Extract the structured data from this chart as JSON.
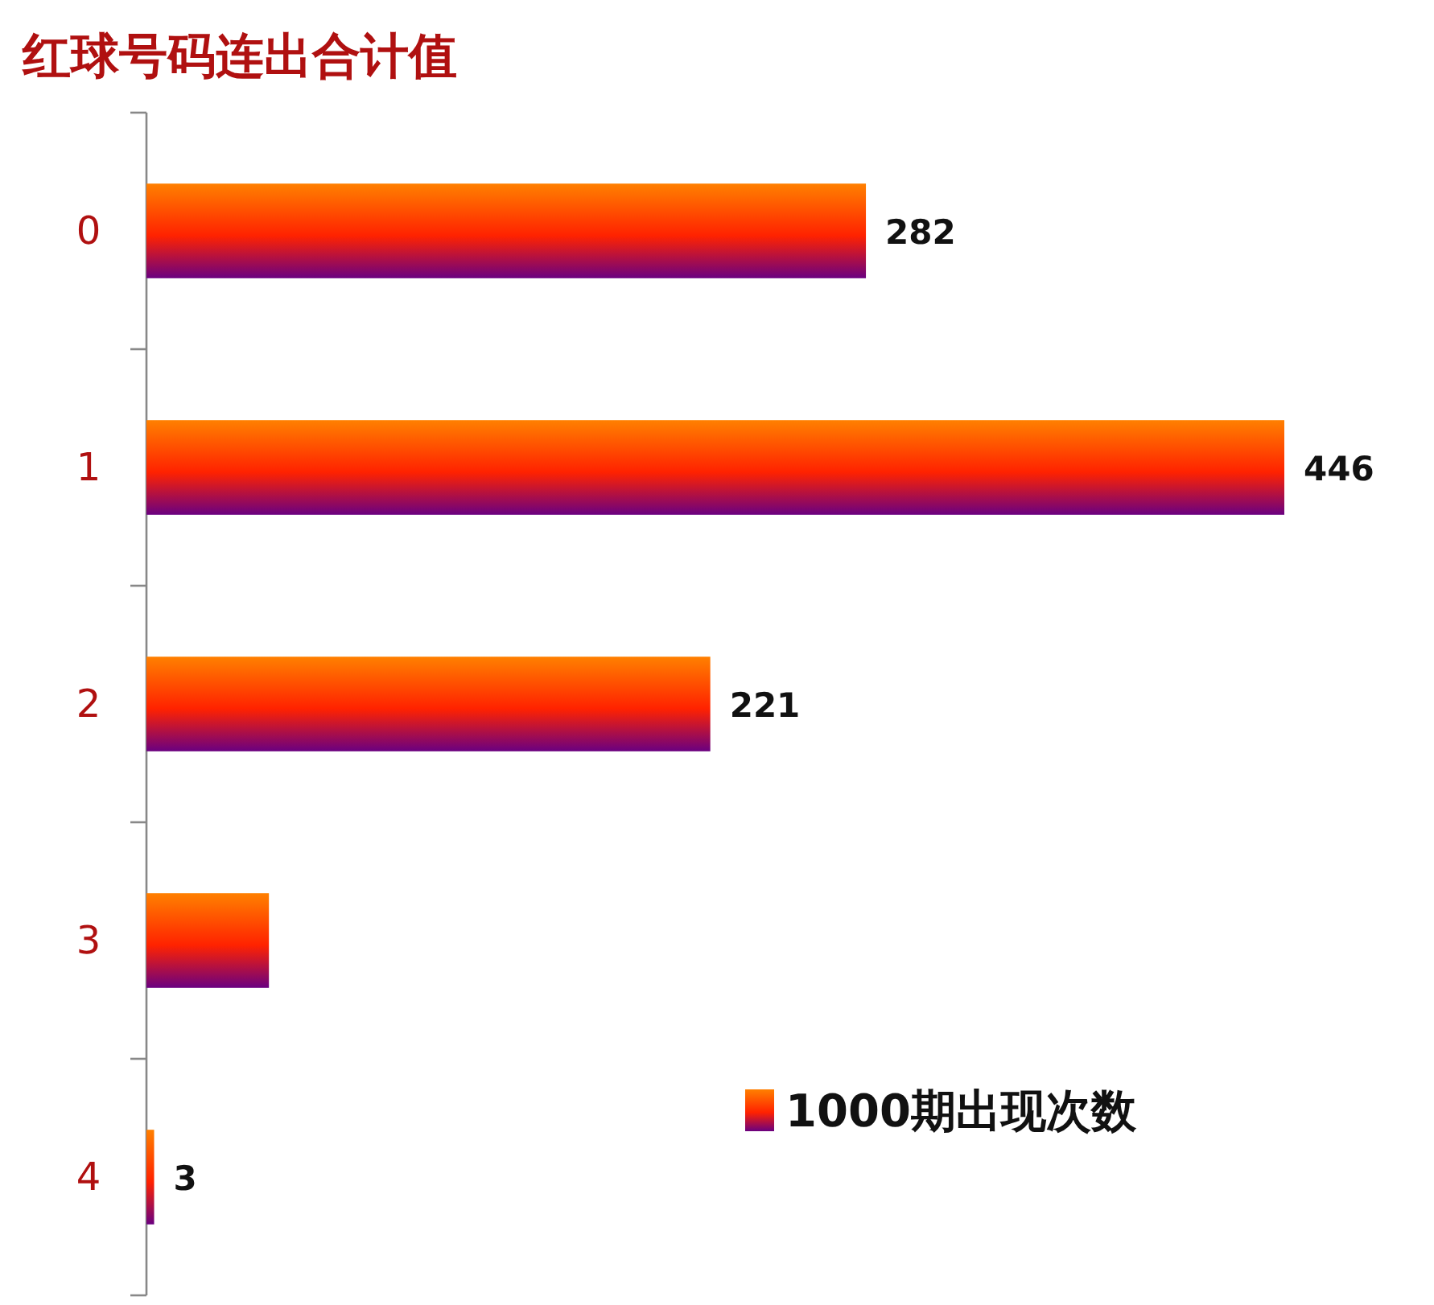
{
  "chart_data": {
    "type": "bar",
    "orientation": "horizontal",
    "title": "红球号码连出合计值",
    "categories": [
      "0",
      "1",
      "2",
      "3",
      "4"
    ],
    "series": [
      {
        "name": "1000期出现次数",
        "color": "#ff2200",
        "values": [
          282,
          446,
          221,
          48,
          3
        ],
        "value_labels": [
          "282",
          "446",
          "221",
          null,
          "3"
        ]
      }
    ],
    "legend": "bottom right",
    "grid": false
  }
}
